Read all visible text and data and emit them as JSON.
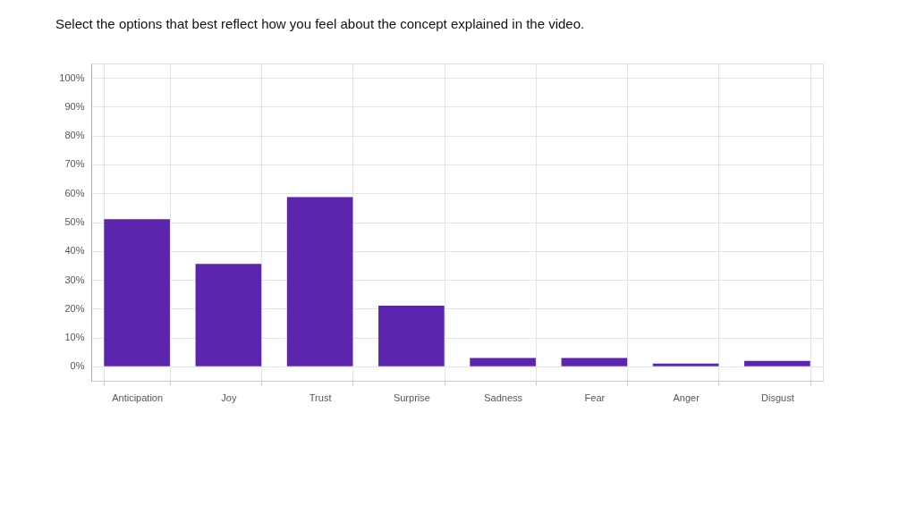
{
  "chart_data": {
    "type": "bar",
    "title": "Select the options that best reflect how you feel about the concept explained in the video.",
    "categories": [
      "Anticipation",
      "Joy",
      "Trust",
      "Surprise",
      "Sadness",
      "Fear",
      "Anger",
      "Disgust"
    ],
    "values": [
      51,
      35.5,
      58.7,
      21,
      2.9,
      2.9,
      1,
      1.9
    ],
    "color": "#5b26ad",
    "ylim": [
      -5,
      105
    ],
    "yticks": [
      {
        "value": 0,
        "label": "0%"
      },
      {
        "value": 10,
        "label": "10%"
      },
      {
        "value": 20,
        "label": "20%"
      },
      {
        "value": 30,
        "label": "30%"
      },
      {
        "value": 40,
        "label": "40%"
      },
      {
        "value": 50,
        "label": "50%"
      },
      {
        "value": 60,
        "label": "60%"
      },
      {
        "value": 70,
        "label": "70%"
      },
      {
        "value": 80,
        "label": "80%"
      },
      {
        "value": 90,
        "label": "90%"
      },
      {
        "value": 100,
        "label": "100%"
      }
    ],
    "grid": true
  }
}
